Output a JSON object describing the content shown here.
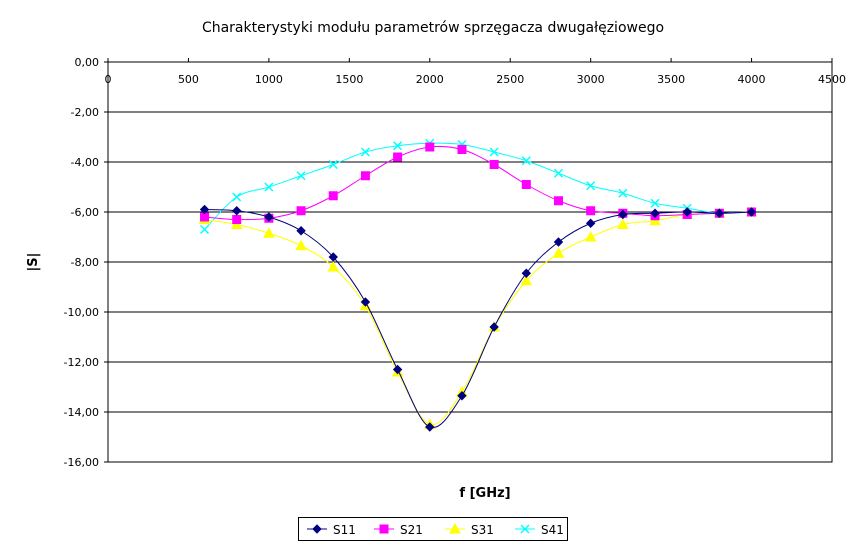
{
  "chart_data": {
    "type": "line",
    "title": "Charakterystyki modułu parametrów sprzęgacza dwugałęziowego",
    "xlabel": "f [GHz]",
    "ylabel": "|S|",
    "xlim": [
      0,
      4500
    ],
    "ylim": [
      -16,
      0
    ],
    "x_ticks": [
      "0",
      "500",
      "1000",
      "1500",
      "2000",
      "2500",
      "3000",
      "3500",
      "4000",
      "4500"
    ],
    "y_ticks": [
      "0,00",
      "-2,00",
      "-4,00",
      "-6,00",
      "-8,00",
      "-10,00",
      "-12,00",
      "-14,00",
      "-16,00"
    ],
    "grid": "horizontal",
    "legend_position": "bottom",
    "x": [
      600,
      800,
      1000,
      1200,
      1400,
      1600,
      1800,
      2000,
      2200,
      2400,
      2600,
      2800,
      3000,
      3200,
      3400,
      3600,
      3800,
      4000
    ],
    "series": [
      {
        "name": "S11",
        "color": "#000080",
        "marker": "diamond",
        "values": [
          -5.9,
          -5.95,
          -6.2,
          -6.75,
          -7.8,
          -9.6,
          -12.3,
          -14.6,
          -13.35,
          -10.6,
          -8.45,
          -7.2,
          -6.45,
          -6.1,
          -6.05,
          -6.0,
          -6.05,
          -6.0
        ]
      },
      {
        "name": "S21",
        "color": "#ff00ff",
        "marker": "square",
        "values": [
          -6.2,
          -6.3,
          -6.25,
          -5.95,
          -5.35,
          -4.55,
          -3.8,
          -3.4,
          -3.5,
          -4.1,
          -4.9,
          -5.55,
          -5.95,
          -6.05,
          -6.15,
          -6.1,
          -6.05,
          -6.0
        ]
      },
      {
        "name": "S31",
        "color": "#ffff00",
        "marker": "triangle",
        "values": [
          -6.3,
          -6.5,
          -6.85,
          -7.35,
          -8.2,
          -9.75,
          -12.4,
          -14.5,
          -13.2,
          -10.6,
          -8.75,
          -7.65,
          -7.0,
          -6.5,
          -6.35,
          -6.1,
          -6.05,
          -6.0
        ]
      },
      {
        "name": "S41",
        "color": "#00ffff",
        "marker": "x",
        "values": [
          -6.7,
          -5.4,
          -5.0,
          -4.55,
          -4.1,
          -3.6,
          -3.35,
          -3.25,
          -3.3,
          -3.6,
          -3.95,
          -4.45,
          -4.95,
          -5.25,
          -5.65,
          -5.85,
          -6.05,
          -6.0
        ]
      }
    ]
  }
}
